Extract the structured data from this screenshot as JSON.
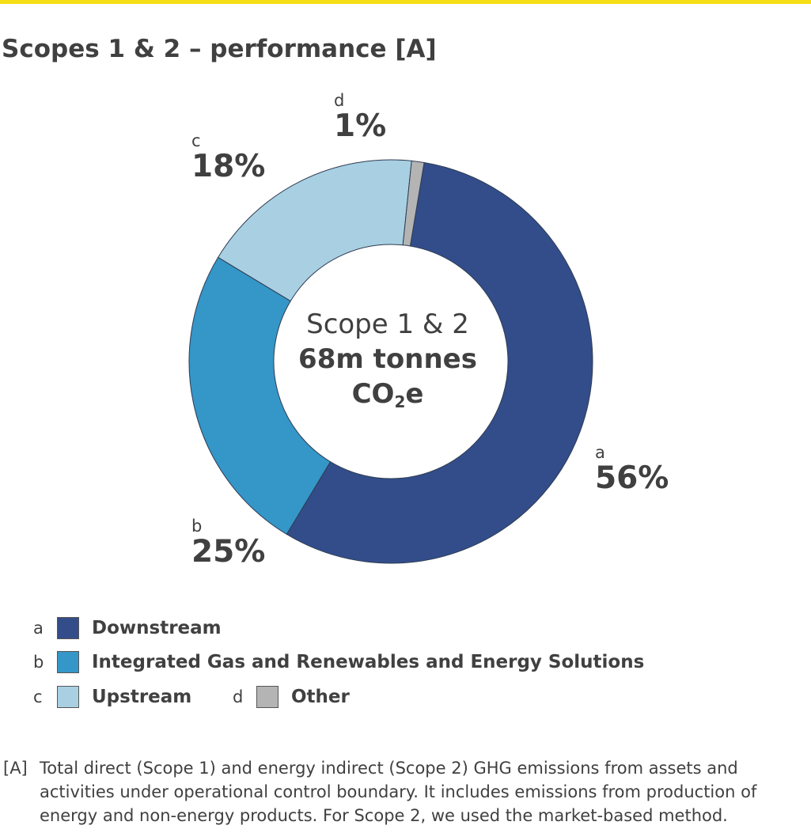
{
  "title": "Scopes 1 & 2 – performance [A]",
  "colors": {
    "accent_bar": "#f6de16",
    "downstream": "#324d8a",
    "integrated_gas": "#3596c8",
    "upstream": "#a8d0e2",
    "other": "#b4b4b4"
  },
  "center": {
    "line1": "Scope 1 & 2",
    "line2": "68m tonnes",
    "line3_main": "CO",
    "line3_sub": "2",
    "line3_tail": "e"
  },
  "chart_data": {
    "type": "pie",
    "variant": "donut",
    "title": "Scopes 1 & 2 – performance [A]",
    "total_label": "68m tonnes CO2e",
    "categories": [
      "Downstream",
      "Integrated Gas and Renewables and Energy Solutions",
      "Upstream",
      "Other"
    ],
    "letters": [
      "a",
      "b",
      "c",
      "d"
    ],
    "values": [
      56,
      25,
      18,
      1
    ],
    "value_labels": [
      "56%",
      "25%",
      "18%",
      "1%"
    ],
    "start_angle_deg": 9.5,
    "direction": "clockwise"
  },
  "legend": {
    "items": [
      {
        "letter": "a",
        "label": "Downstream"
      },
      {
        "letter": "b",
        "label": "Integrated Gas and Renewables and Energy Solutions"
      },
      {
        "letter": "c",
        "label": "Upstream"
      },
      {
        "letter": "d",
        "label": "Other"
      }
    ]
  },
  "footnote": {
    "mark": "[A]",
    "text": "Total direct (Scope 1) and energy indirect (Scope 2) GHG emissions from assets and activities under operational control boundary. It includes emissions from production of energy and non-energy products. For Scope 2, we used the market-based method."
  }
}
